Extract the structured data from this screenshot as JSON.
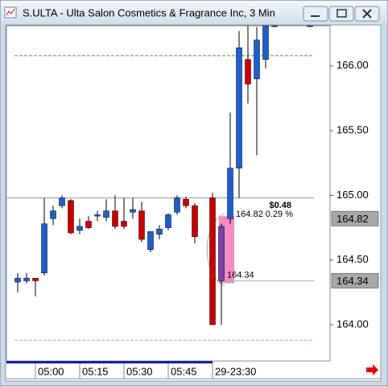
{
  "chart_data": {
    "type": "candlestick",
    "title": "S.ULTA - Ulta Salon Cosmetics & Fragrance Inc, 3 Min",
    "categories": [
      null,
      null,
      "05:00",
      null,
      null,
      null,
      null,
      "05:15",
      null,
      null,
      null,
      null,
      "05:30",
      null,
      null,
      null,
      null,
      "05:45",
      null,
      null,
      null,
      null,
      "29-23:30",
      null,
      null,
      null,
      null,
      null,
      null,
      null,
      null,
      null,
      null,
      null
    ],
    "open": [
      164.33,
      164.34,
      164.36,
      164.4,
      164.82,
      164.92,
      164.96,
      164.73,
      164.8,
      164.84,
      164.83,
      164.88,
      164.8,
      164.87,
      164.88,
      164.58,
      164.7,
      164.75,
      164.87,
      164.97,
      164.92,
      null,
      164.98,
      164.34,
      164.82,
      165.21,
      166.05,
      165.9,
      166.05,
      166.31,
      null,
      null,
      null,
      166.31
    ],
    "high": [
      164.4,
      164.4,
      164.36,
      164.98,
      164.92,
      165.0,
      164.97,
      164.82,
      164.84,
      164.88,
      164.97,
      165.0,
      164.98,
      164.98,
      164.95,
      164.72,
      164.77,
      164.86,
      165.0,
      164.99,
      164.94,
      null,
      165.02,
      164.78,
      165.64,
      166.27,
      166.31,
      166.3,
      166.31,
      166.31,
      null,
      null,
      null,
      166.31
    ],
    "low": [
      164.25,
      164.32,
      164.22,
      164.38,
      164.77,
      164.9,
      164.7,
      164.7,
      164.74,
      164.8,
      164.8,
      164.74,
      164.74,
      164.82,
      164.64,
      164.56,
      164.66,
      164.73,
      164.85,
      164.9,
      164.63,
      null,
      164.0,
      164.0,
      164.78,
      164.98,
      165.71,
      165.31,
      165.98,
      166.3,
      null,
      null,
      null,
      166.3
    ],
    "close": [
      164.36,
      164.36,
      164.34,
      164.78,
      164.88,
      164.98,
      164.71,
      164.76,
      164.75,
      164.85,
      164.88,
      164.76,
      164.76,
      164.89,
      164.66,
      164.72,
      164.74,
      164.85,
      164.98,
      164.92,
      164.68,
      null,
      164.0,
      164.76,
      165.21,
      166.14,
      165.86,
      166.2,
      166.31,
      166.31,
      null,
      null,
      null,
      166.31
    ],
    "colors": [
      "#1e5fcf",
      "#1e5fcf",
      "#cc0000",
      "#1e5fcf",
      "#1e5fcf",
      "#1e5fcf",
      "#cc0000",
      "#1e5fcf",
      "#cc0000",
      "#1e5fcf",
      "#1e5fcf",
      "#cc0000",
      "#cc0000",
      "#1e5fcf",
      "#cc0000",
      "#1e5fcf",
      "#1e5fcf",
      "#1e5fcf",
      "#1e5fcf",
      "#cc0000",
      "#cc0000",
      null,
      "#cc0000",
      "#7b3fa8",
      "#1e5fcf",
      "#1e5fcf",
      "#cc0000",
      "#1e5fcf",
      "#1e5fcf",
      "#1e5fcf",
      null,
      null,
      null,
      "#1e5fcf"
    ],
    "ylim": [
      163.72,
      166.31
    ],
    "yticks": [
      {
        "value": 164,
        "label": "164.00"
      },
      {
        "value": 164.5,
        "label": "164.50"
      },
      {
        "value": 165,
        "label": "165.00"
      },
      {
        "value": 165.5,
        "label": "165.50"
      },
      {
        "value": 166,
        "label": "166.00"
      }
    ],
    "price_labels": [
      {
        "value": 164.82,
        "label": "164.82"
      },
      {
        "value": 164.34,
        "label": "164.34"
      }
    ],
    "lines": [
      {
        "value": 166.08,
        "color": "#2ca02c",
        "dashed": true
      },
      {
        "value": 164.98,
        "color": "#999999",
        "dashed": false
      },
      {
        "value": 163.88,
        "color": "#e08ab8",
        "dashed": true
      }
    ],
    "measure": {
      "from_value": 164.34,
      "to_value": 164.82,
      "change_label": "$0.48",
      "top_label": "164.82 0.29 %",
      "bottom_label": "164.34",
      "color": "#f48ac6"
    }
  }
}
